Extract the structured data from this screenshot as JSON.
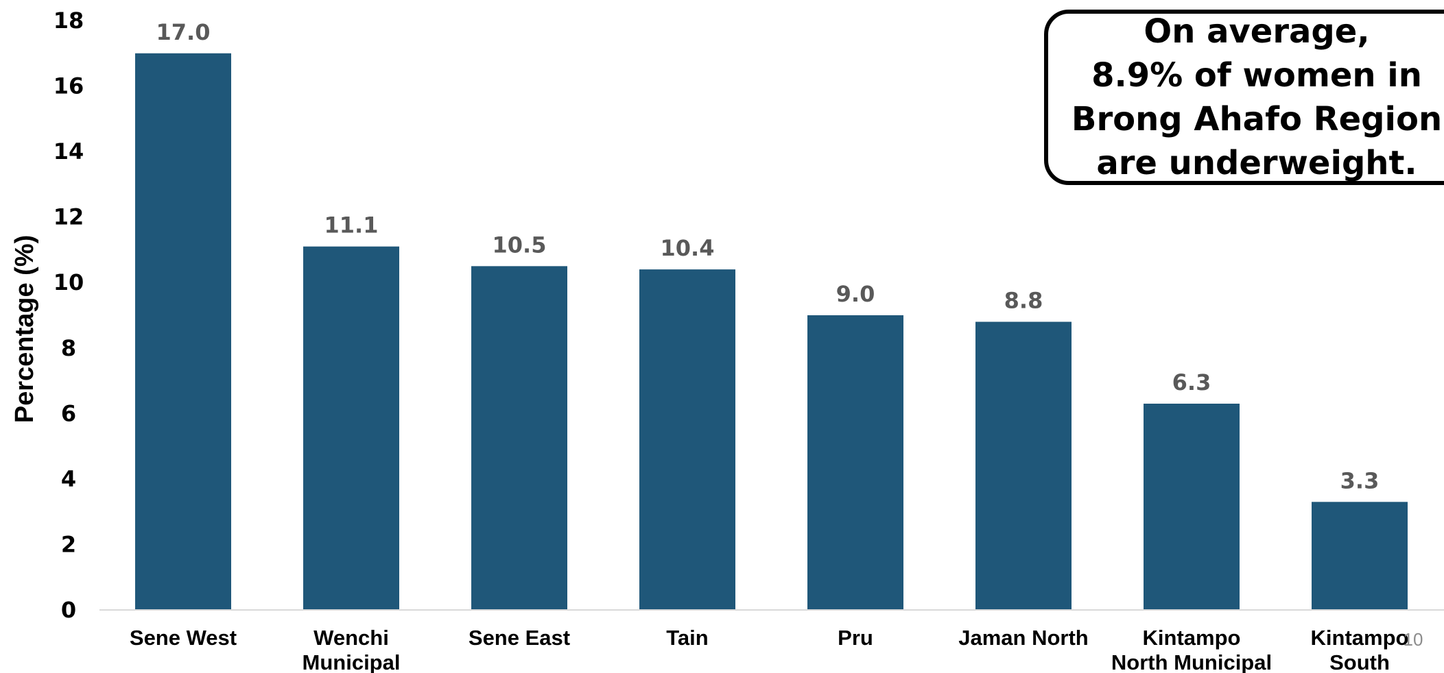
{
  "chart_data": {
    "type": "bar",
    "categories": [
      [
        "Sene West"
      ],
      [
        "Wenchi",
        "Municipal"
      ],
      [
        "Sene East"
      ],
      [
        "Tain"
      ],
      [
        "Pru"
      ],
      [
        "Jaman North"
      ],
      [
        "Kintampo",
        "North Municipal"
      ],
      [
        "Kintampo",
        "South"
      ]
    ],
    "values": [
      17.0,
      11.1,
      10.5,
      10.4,
      9.0,
      8.8,
      6.3,
      3.3
    ],
    "value_labels": [
      "17.0",
      "11.1",
      "10.5",
      "10.4",
      "9.0",
      "8.8",
      "6.3",
      "3.3"
    ],
    "ylabel": "Percentage (%)",
    "xlabel": "",
    "ylim": [
      0,
      18
    ],
    "yticks": [
      0,
      2,
      4,
      6,
      8,
      10,
      12,
      14,
      16,
      18
    ],
    "bar_color": "#1f5779",
    "grid": false,
    "legend": "none"
  },
  "callout": {
    "lines": [
      "On average,",
      "8.9% of women in",
      "Brong Ahafo Region",
      "are underweight."
    ]
  },
  "slide_number": "10"
}
